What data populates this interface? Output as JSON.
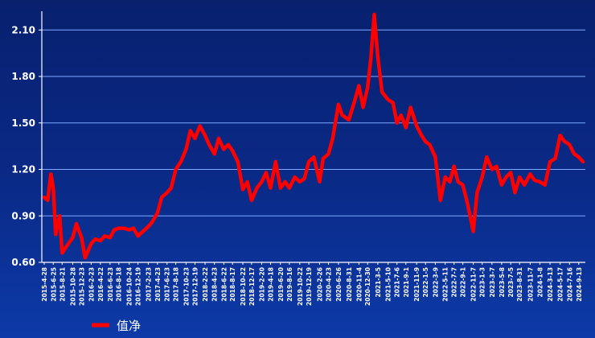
{
  "chart_data": {
    "type": "line",
    "title": "",
    "xlabel": "",
    "ylabel": "",
    "ylim": [
      0.6,
      2.2
    ],
    "grid": true,
    "legend_position": "bottom-left",
    "colors": {
      "series": "#ff0000",
      "grid": "#7fa8ff",
      "axis": "#ffffff",
      "text": "#ffffff"
    },
    "y_ticks": [
      "0.60",
      "0.90",
      "1.20",
      "1.50",
      "1.80",
      "2.10"
    ],
    "x_ticks": [
      "2015-4-28",
      "2015-6-25",
      "2015-8-21",
      "2015-10-28",
      "2015-12-23",
      "2016-2-23",
      "2016-4-22",
      "2016-6-23",
      "2016-8-18",
      "2016-10-24",
      "2016-12-19",
      "2017-2-23",
      "2017-4-23",
      "2017-6-23",
      "2017-8-18",
      "2017-10-23",
      "2017-12-19",
      "2018-2-22",
      "2018-4-23",
      "2018-6-22",
      "2018-8-17",
      "2018-10-22",
      "2018-12-17",
      "2019-2-20",
      "2019-4-18",
      "2019-6-20",
      "2019-8-16",
      "2019-10-22",
      "2019-12-19",
      "2020-2-26",
      "2020-4-23",
      "2020-6-26",
      "2020-8-31",
      "2020-11-4",
      "2020-12-30",
      "2021-3-5",
      "2021-5-10",
      "2021-7-6",
      "2021-9-1",
      "2021-11-9",
      "2022-1-5",
      "2022-3-9",
      "2022-5-11",
      "2022-7-7",
      "2022-9-1",
      "2022-11-7",
      "2023-1-3",
      "2023-3-7",
      "2023-5-8",
      "2023-7-5",
      "2023-8-31",
      "2023-11-7",
      "2024-1-8",
      "2024-3-13",
      "2024-5-17",
      "2024-7-16",
      "2024-9-13"
    ],
    "series": [
      {
        "name": "值净",
        "x": [
          "2015-04-28",
          "2015-05-20",
          "2015-06-10",
          "2015-06-25",
          "2015-07-10",
          "2015-08-05",
          "2015-08-21",
          "2015-09-15",
          "2015-10-28",
          "2015-11-20",
          "2015-12-23",
          "2016-01-15",
          "2016-02-23",
          "2016-03-20",
          "2016-04-22",
          "2016-05-20",
          "2016-06-23",
          "2016-07-20",
          "2016-08-18",
          "2016-09-20",
          "2016-10-24",
          "2016-11-20",
          "2016-12-19",
          "2017-01-20",
          "2017-02-23",
          "2017-03-20",
          "2017-04-23",
          "2017-05-20",
          "2017-06-23",
          "2017-07-20",
          "2017-08-18",
          "2017-09-20",
          "2017-10-23",
          "2017-11-20",
          "2017-12-19",
          "2018-01-20",
          "2018-02-22",
          "2018-03-20",
          "2018-04-23",
          "2018-05-20",
          "2018-06-22",
          "2018-07-20",
          "2018-08-17",
          "2018-09-20",
          "2018-10-22",
          "2018-11-20",
          "2018-12-17",
          "2019-01-20",
          "2019-02-20",
          "2019-03-20",
          "2019-04-18",
          "2019-05-20",
          "2019-06-20",
          "2019-07-20",
          "2019-08-16",
          "2019-09-20",
          "2019-10-22",
          "2019-11-20",
          "2019-12-19",
          "2020-01-20",
          "2020-02-26",
          "2020-03-20",
          "2020-04-23",
          "2020-05-20",
          "2020-06-26",
          "2020-07-20",
          "2020-08-31",
          "2020-10-01",
          "2020-11-04",
          "2020-12-01",
          "2020-12-30",
          "2021-01-20",
          "2021-02-10",
          "2021-03-05",
          "2021-04-01",
          "2021-05-10",
          "2021-06-10",
          "2021-07-06",
          "2021-08-01",
          "2021-09-01",
          "2021-10-01",
          "2021-11-09",
          "2021-12-10",
          "2022-01-05",
          "2022-02-01",
          "2022-03-09",
          "2022-04-10",
          "2022-05-11",
          "2022-06-10",
          "2022-07-07",
          "2022-08-01",
          "2022-09-01",
          "2022-10-01",
          "2022-11-07",
          "2022-12-01",
          "2023-01-03",
          "2023-02-01",
          "2023-03-07",
          "2023-04-05",
          "2023-05-08",
          "2023-06-05",
          "2023-07-05",
          "2023-08-01",
          "2023-08-31",
          "2023-10-01",
          "2023-11-07",
          "2023-12-05",
          "2024-01-08",
          "2024-02-10",
          "2024-03-13",
          "2024-04-15",
          "2024-05-17",
          "2024-06-15",
          "2024-07-16",
          "2024-08-15",
          "2024-09-13",
          "2024-10-10"
        ],
        "values": [
          1.02,
          1.0,
          1.17,
          1.08,
          0.78,
          0.9,
          0.66,
          0.7,
          0.76,
          0.85,
          0.76,
          0.63,
          0.72,
          0.75,
          0.74,
          0.77,
          0.76,
          0.81,
          0.82,
          0.82,
          0.81,
          0.82,
          0.77,
          0.8,
          0.83,
          0.86,
          0.92,
          1.02,
          1.05,
          1.08,
          1.2,
          1.25,
          1.33,
          1.45,
          1.4,
          1.48,
          1.42,
          1.36,
          1.3,
          1.4,
          1.33,
          1.36,
          1.32,
          1.25,
          1.07,
          1.12,
          1.0,
          1.08,
          1.12,
          1.18,
          1.08,
          1.25,
          1.08,
          1.12,
          1.08,
          1.15,
          1.12,
          1.14,
          1.25,
          1.28,
          1.12,
          1.27,
          1.3,
          1.4,
          1.62,
          1.55,
          1.52,
          1.62,
          1.74,
          1.6,
          1.73,
          1.92,
          2.2,
          1.93,
          1.7,
          1.65,
          1.63,
          1.5,
          1.55,
          1.47,
          1.6,
          1.48,
          1.42,
          1.38,
          1.36,
          1.28,
          1.0,
          1.15,
          1.12,
          1.22,
          1.12,
          1.1,
          0.98,
          0.8,
          1.05,
          1.15,
          1.28,
          1.2,
          1.22,
          1.1,
          1.15,
          1.18,
          1.05,
          1.15,
          1.1,
          1.17,
          1.13,
          1.12,
          1.1,
          1.25,
          1.27,
          1.42,
          1.38,
          1.36,
          1.3,
          1.28,
          1.25
        ]
      }
    ]
  }
}
